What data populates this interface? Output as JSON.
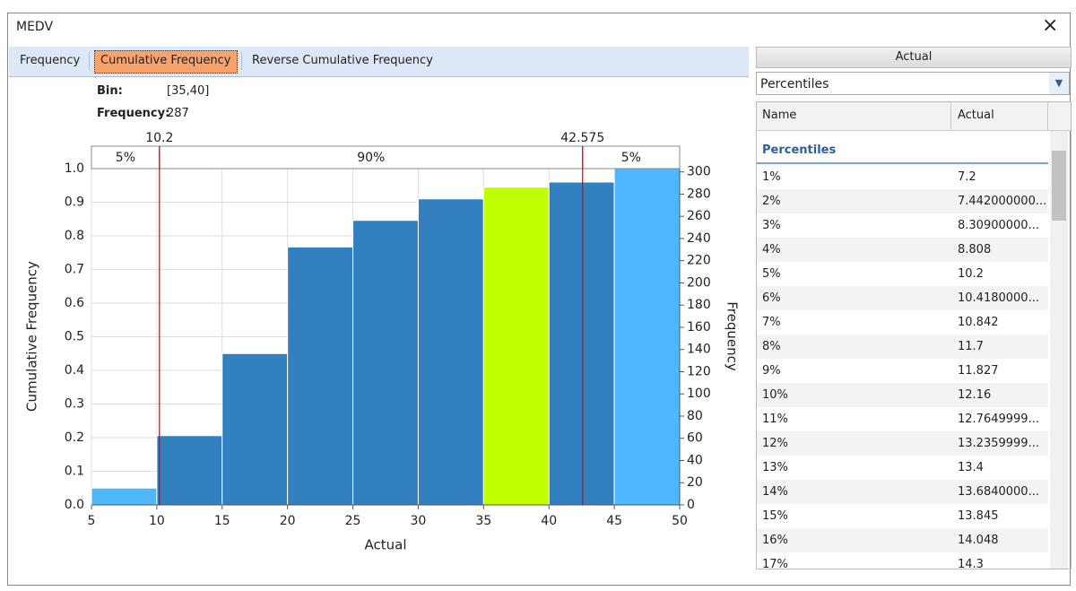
{
  "window": {
    "title": "MEDV",
    "close": "×"
  },
  "tabs": [
    "Frequency",
    "Cumulative Frequency",
    "Reverse Cumulative Frequency"
  ],
  "selected_tab": 1,
  "tooltip": {
    "bin_label": "Bin:",
    "bin": "[35,40]",
    "frequency_label": "Frequency:",
    "frequency": 287
  },
  "chart_data": {
    "type": "histogram",
    "bins": [
      5,
      10,
      15,
      20,
      25,
      30,
      35,
      40,
      45,
      50
    ],
    "values": [
      0.05,
      0.206,
      0.45,
      0.767,
      0.846,
      0.91,
      0.945,
      0.96,
      1.0
    ],
    "colors": [
      "#4db8ff",
      "#3380c0",
      "#3380c0",
      "#3380c0",
      "#3380c0",
      "#3380c0",
      "#bfff00",
      "#3380c0",
      "#4db8ff"
    ],
    "xlim": [
      5,
      50
    ],
    "xticks": [
      5,
      10,
      15,
      20,
      25,
      30,
      35,
      40,
      45,
      50
    ],
    "ylim": [
      0,
      1
    ],
    "yticks": [
      {
        "value": 0,
        "label": "0.0"
      },
      0.1,
      0.2,
      0.3,
      0.4,
      0.5,
      0.6,
      0.7,
      0.8,
      0.9,
      {
        "value": 1,
        "label": "1.0"
      }
    ],
    "y2lim": [
      0,
      303
    ],
    "y2ticks": [
      0,
      20,
      40,
      60,
      80,
      100,
      120,
      140,
      160,
      180,
      200,
      220,
      240,
      260,
      280,
      300
    ],
    "x_label": "Actual",
    "y_label": "Cumulative Frequency",
    "y2_label": "Frequency",
    "grid": true,
    "markers": [
      10.2,
      42.575
    ],
    "marker_color": "#e00000",
    "bands": [
      "5%",
      "90%",
      "5%"
    ]
  },
  "panel": {
    "header": "Actual",
    "dropdown": "Percentiles",
    "table": {
      "columns": [
        "Name",
        "Actual"
      ],
      "group": "Percentiles",
      "rows": [
        [
          "1%",
          "7.2"
        ],
        [
          "2%",
          "7.442000000..."
        ],
        [
          "3%",
          "8.30900000..."
        ],
        [
          "4%",
          "8.808"
        ],
        [
          "5%",
          "10.2"
        ],
        [
          "6%",
          "10.4180000..."
        ],
        [
          "7%",
          "10.842"
        ],
        [
          "8%",
          "11.7"
        ],
        [
          "9%",
          "11.827"
        ],
        [
          "10%",
          "12.16"
        ],
        [
          "11%",
          "12.7649999..."
        ],
        [
          "12%",
          "13.2359999..."
        ],
        [
          "13%",
          "13.4"
        ],
        [
          "14%",
          "13.6840000..."
        ],
        [
          "15%",
          "13.845"
        ],
        [
          "16%",
          "14.048"
        ],
        [
          "17%",
          "14.3"
        ]
      ]
    }
  }
}
